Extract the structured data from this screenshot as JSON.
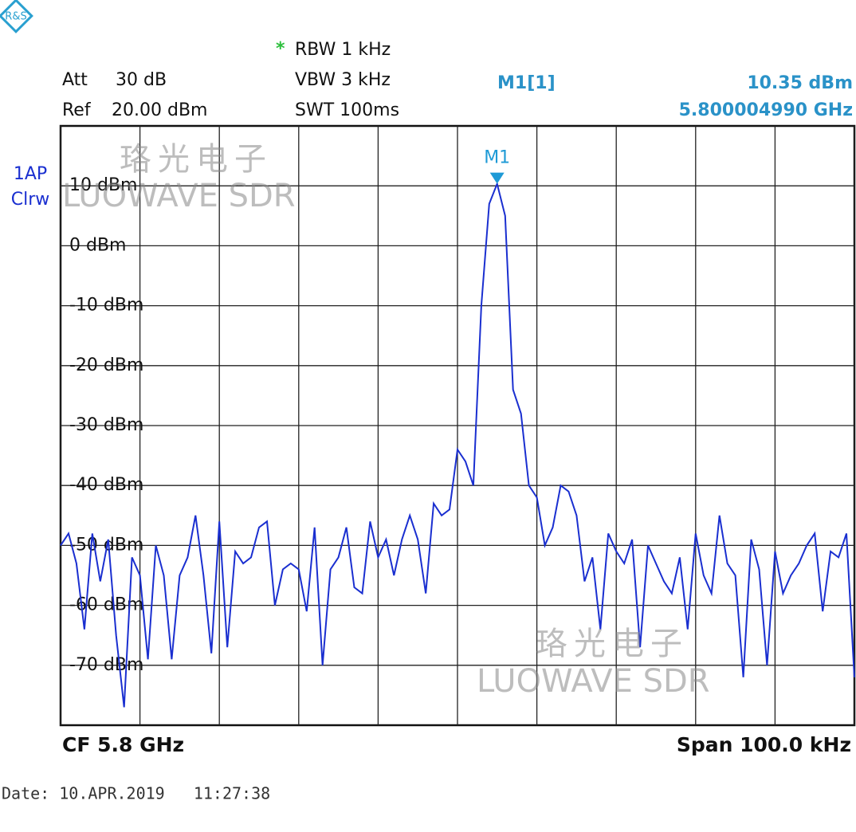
{
  "chart_data": {
    "type": "line",
    "settings": {
      "rbw_flag": "*",
      "rbw": "RBW 1 kHz",
      "vbw": "VBW 3 kHz",
      "swt": "SWT 100ms",
      "att_label": "Att",
      "att": "30 dB",
      "ref_label": "Ref",
      "ref": "20.00 dBm"
    },
    "trace_mode": "Clrw",
    "center": "CF 5.8 GHz",
    "span": "Span 100.0 kHz",
    "date": "Date: 10.APR.2019   11:27:38",
    "watermark": [
      "珞光电子",
      "LUOWAVE SDR"
    ],
    "marker": {
      "label": "M1",
      "readout_name": "M1[1]",
      "level": "10.35 dBm",
      "frequency": "5.800004990 GHz",
      "x": 4.99,
      "y": 10.35,
      "color": "#1e9ad6"
    },
    "x": [
      -50,
      -49,
      -48,
      -47,
      -46,
      -45,
      -44,
      -43,
      -42,
      -41,
      -40,
      -39,
      -38,
      -37,
      -36,
      -35,
      -34,
      -33,
      -32,
      -31,
      -30,
      -29,
      -28,
      -27,
      -26,
      -25,
      -24,
      -23,
      -22,
      -21,
      -20,
      -19,
      -18,
      -17,
      -16,
      -15,
      -14,
      -13,
      -12,
      -11,
      -10,
      -9,
      -8,
      -7,
      -6,
      -5,
      -4,
      -3,
      -2,
      -1,
      0,
      1,
      2,
      3,
      4,
      4.99,
      6,
      7,
      8,
      9,
      10,
      11,
      12,
      13,
      14,
      15,
      16,
      17,
      18,
      19,
      20,
      21,
      22,
      23,
      24,
      25,
      26,
      27,
      28,
      29,
      30,
      31,
      32,
      33,
      34,
      35,
      36,
      37,
      38,
      39,
      40,
      41,
      42,
      43,
      44,
      45,
      46,
      47,
      48,
      49,
      50
    ],
    "series": [
      {
        "name": "1AP",
        "color": "#1a2fd0",
        "values": [
          -50,
          -48,
          -53,
          -64,
          -48,
          -56,
          -49,
          -65,
          -77,
          -52,
          -55,
          -69,
          -50,
          -55,
          -69,
          -55,
          -52,
          -45,
          -55,
          -68,
          -46,
          -67,
          -51,
          -53,
          -52,
          -47,
          -46,
          -60,
          -54,
          -53,
          -54,
          -61,
          -47,
          -70,
          -54,
          -52,
          -47,
          -57,
          -58,
          -46,
          -52,
          -49,
          -55,
          -49,
          -45,
          -49,
          -58,
          -43,
          -45,
          -44,
          -34,
          -36,
          -40,
          -10,
          7,
          10.35,
          5,
          -24,
          -28,
          -40,
          -42,
          -50,
          -47,
          -40,
          -41,
          -45,
          -56,
          -52,
          -64,
          -48,
          -51,
          -53,
          -49,
          -67,
          -50,
          -53,
          -56,
          -58,
          -52,
          -64,
          -48,
          -55,
          -58,
          -45,
          -53,
          -55,
          -72,
          -49,
          -54,
          -70,
          -51,
          -58,
          -55,
          -53,
          -50,
          -48,
          -61,
          -51,
          -52,
          -48,
          -72
        ]
      }
    ],
    "xlim": [
      -50,
      50
    ],
    "xticks": [
      -50,
      -40,
      -30,
      -20,
      -10,
      0,
      10,
      20,
      30,
      40,
      50
    ],
    "ylim": [
      -80,
      20
    ],
    "yticks": [
      {
        "value": 10,
        "label": "10 dBm"
      },
      {
        "value": 0,
        "label": "0 dBm"
      },
      {
        "value": -10,
        "label": "-10 dBm"
      },
      {
        "value": -20,
        "label": "-20 dBm"
      },
      {
        "value": -30,
        "label": "-30 dBm"
      },
      {
        "value": -40,
        "label": "-40 dBm"
      },
      {
        "value": -50,
        "label": "-50 dBm"
      },
      {
        "value": -60,
        "label": "-60 dBm"
      },
      {
        "value": -70,
        "label": "-70 dBm"
      }
    ],
    "grid": true
  }
}
